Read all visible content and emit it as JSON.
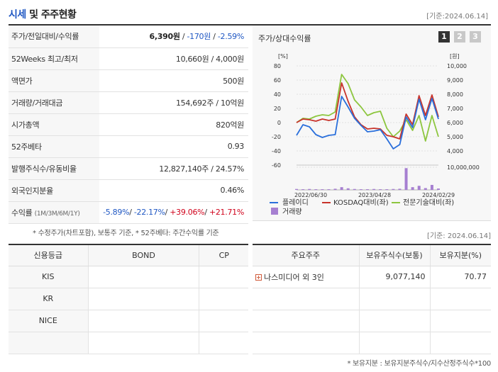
{
  "header": {
    "title_accent": "시세",
    "title_rest": " 및 주주현황",
    "base_date": "[기준:2024.06.14]"
  },
  "quote": {
    "rows": [
      {
        "label": "주가/전일대비/수익률"
      },
      {
        "label": "52Weeks 최고/최저",
        "value": "10,660원 / 4,000원"
      },
      {
        "label": "액면가",
        "value": "500원"
      },
      {
        "label": "거래량/거래대금",
        "value": "154,692주 / 10억원"
      },
      {
        "label": "시가총액",
        "value": "820억원"
      },
      {
        "label": "52주베타",
        "value": "0.93"
      },
      {
        "label": "발행주식수/유동비율",
        "value": "12,827,140주 / 24.57%"
      },
      {
        "label": "외국인지분율",
        "value": "0.46%"
      },
      {
        "label": "수익률",
        "label_sub": "(1M/3M/6M/1Y)"
      }
    ],
    "price": "6,390원",
    "change": "-170원",
    "rate": "-2.59%",
    "sep": " / ",
    "returns": {
      "m1": "-5.89%",
      "m3": "-22.17%",
      "m6": "+39.06%",
      "y1": "+21.71%",
      "sep": "/ "
    }
  },
  "note_quote": "* 수정주가(차트포함), 보통주 기준, * 52주베타: 주간수익률 기준",
  "chart_panel": {
    "title": "주가/상대수익률",
    "tabs": [
      "1",
      "2",
      "3"
    ],
    "active_tab": "1"
  },
  "chart_data": {
    "type": "line",
    "left_axis_unit": "[%]",
    "right_axis_unit": "[원]",
    "left_ticks": [
      "80",
      "60",
      "40",
      "20",
      "0",
      "-20",
      "-40",
      "-60"
    ],
    "right_ticks": [
      "10,000",
      "9,000",
      "8,000",
      "7,000",
      "6,000",
      "5,000",
      "4,000"
    ],
    "volume_tick": "10,000,000",
    "x_labels": [
      "2022/06/30",
      "2023/04/28",
      "2024/02/29"
    ],
    "ylim_left": [
      -60,
      80
    ],
    "ylim_right": [
      4000,
      10000
    ],
    "series": [
      {
        "name": "플레이디",
        "color": "#2a6fdb",
        "values": [
          -18,
          -3,
          -6,
          -17,
          -21,
          -18,
          -17,
          37,
          22,
          6,
          -4,
          -13,
          -12,
          -10,
          -23,
          -37,
          -31,
          8,
          -7,
          33,
          4,
          34,
          5
        ]
      },
      {
        "name": "KOSDAQ대비(좌)",
        "color": "#c8332b",
        "values": [
          0,
          5,
          4,
          2,
          5,
          3,
          5,
          56,
          30,
          8,
          -3,
          -9,
          -8,
          -9,
          -18,
          -20,
          -23,
          12,
          -3,
          38,
          10,
          39,
          8
        ]
      },
      {
        "name": "전문기술대비(좌)",
        "color": "#8dc63f",
        "values": [
          0,
          6,
          5,
          9,
          11,
          10,
          15,
          68,
          55,
          32,
          22,
          10,
          14,
          16,
          -8,
          -20,
          -12,
          4,
          -11,
          10,
          -26,
          10,
          -20
        ]
      }
    ],
    "volume": {
      "name": "거래량",
      "color": "#a67fd1",
      "values": [
        0.04,
        0.03,
        0.04,
        0.03,
        0.03,
        0.03,
        0.05,
        0.12,
        0.07,
        0.04,
        0.03,
        0.03,
        0.04,
        0.03,
        0.03,
        0.04,
        0.05,
        0.96,
        0.12,
        0.18,
        0.08,
        0.22,
        0.06
      ]
    }
  },
  "legend": {
    "item1": "플레이디",
    "item2": "KOSDAQ대비(좌)",
    "item3": "전문기술대비(좌)",
    "item4": "거래량"
  },
  "base_date_mid": "[기준: 2024.06.14]",
  "credit": {
    "headers": [
      "신용등급",
      "BOND",
      "CP"
    ],
    "agencies": [
      "KIS",
      "KR",
      "NICE",
      ""
    ]
  },
  "shareholders": {
    "headers": [
      "주요주주",
      "보유주식수(보통)",
      "보유지분(%)"
    ],
    "rows": [
      {
        "name": "나스미디어 외 3인",
        "shares": "9,077,140",
        "pct": "70.77"
      }
    ]
  },
  "note_share": "* 보유지분 : 보유지분주식수/지수산정주식수*100",
  "icons": {
    "expand": "plus-icon"
  }
}
